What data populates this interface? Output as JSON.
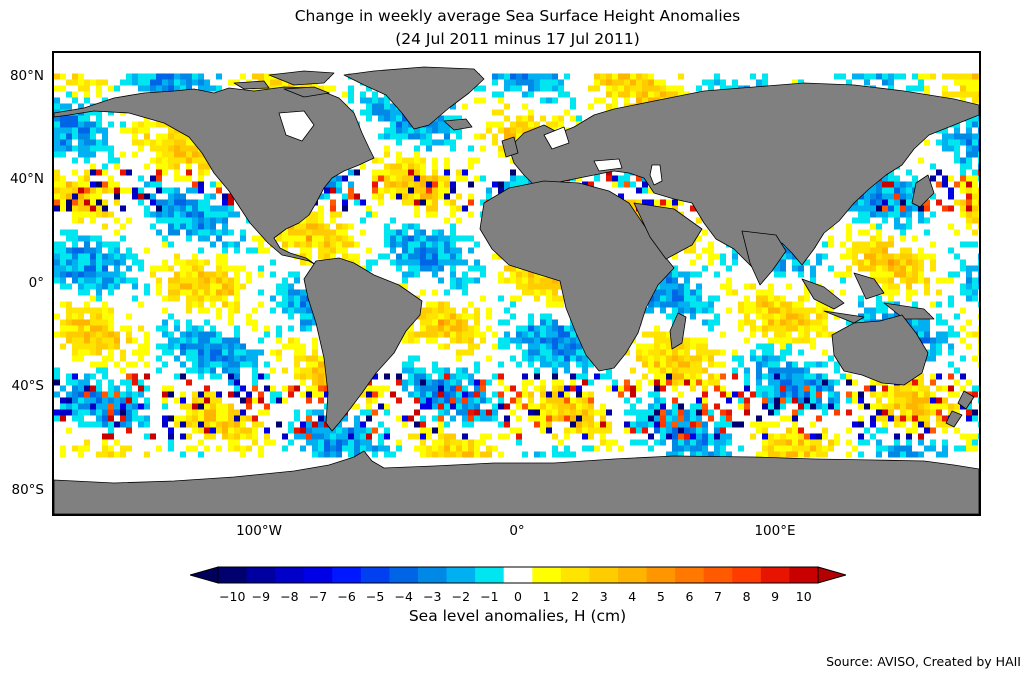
{
  "title_line1": "Change in weekly average Sea Surface Height Anomalies",
  "title_line2": "(24 Jul 2011 minus 17 Jul 2011)",
  "map": {
    "projection": "equirectangular",
    "lon_range": [
      -180,
      180
    ],
    "lat_range": [
      -90,
      90
    ],
    "land_color": "#808080",
    "lat_labels": [
      "80°N",
      "40°N",
      "0°",
      "40°S",
      "80°S"
    ],
    "lat_values": [
      80,
      40,
      0,
      -40,
      -80
    ],
    "lon_labels": [
      "100°W",
      "0°",
      "100°E"
    ],
    "lon_values": [
      -100,
      0,
      100
    ],
    "data_coverage_lat": [
      -66,
      82
    ]
  },
  "colorbar": {
    "levels": [
      -10,
      -9,
      -8,
      -7,
      -6,
      -5,
      -4,
      -3,
      -2,
      -1,
      0,
      1,
      2,
      3,
      4,
      5,
      6,
      7,
      8,
      9,
      10
    ],
    "tick_labels": [
      "−10",
      "−9",
      "−8",
      "−7",
      "−6",
      "−5",
      "−4",
      "−3",
      "−2",
      "−1",
      "0",
      "1",
      "2",
      "3",
      "4",
      "5",
      "6",
      "7",
      "8",
      "9",
      "10"
    ],
    "colors": [
      "#00006e",
      "#0000a0",
      "#0000c8",
      "#0000e6",
      "#0018ff",
      "#0040f0",
      "#0064e6",
      "#0088e6",
      "#00b0f0",
      "#00e6f0",
      "#ffffff",
      "#ffff00",
      "#ffe400",
      "#ffcc00",
      "#ffb400",
      "#ff9600",
      "#ff7800",
      "#ff5a00",
      "#ff3c00",
      "#e61400",
      "#c80000"
    ],
    "under_color": "#00005a",
    "over_color": "#b40000",
    "label": "Sea level anomalies, H (cm)"
  },
  "source": "Source: AVISO, Created by HAII"
}
